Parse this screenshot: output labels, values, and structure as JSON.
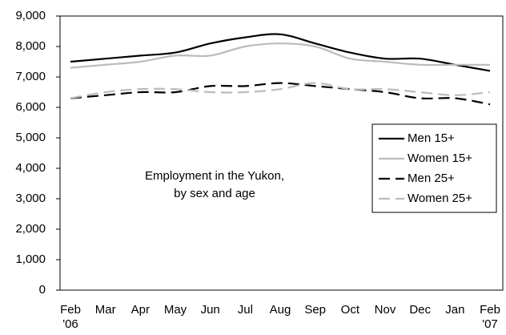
{
  "chart_data": {
    "type": "line",
    "annotation": [
      "Employment in the Yukon,",
      "by sex and age"
    ],
    "categories": [
      "Feb '06",
      "Mar",
      "Apr",
      "May",
      "Jun",
      "Jul",
      "Aug",
      "Sep",
      "Oct",
      "Nov",
      "Dec",
      "Jan",
      "Feb '07"
    ],
    "series": [
      {
        "name": "Men 15+",
        "color": "#000000",
        "style": "solid",
        "values": [
          7500,
          7600,
          7700,
          7800,
          8100,
          8300,
          8400,
          8100,
          7800,
          7600,
          7600,
          7400,
          7200
        ]
      },
      {
        "name": "Women 15+",
        "color": "#bbbbbb",
        "style": "solid",
        "values": [
          7300,
          7400,
          7500,
          7700,
          7700,
          8000,
          8100,
          8000,
          7600,
          7500,
          7400,
          7400,
          7400
        ]
      },
      {
        "name": "Men 25+",
        "color": "#000000",
        "style": "dashed",
        "values": [
          6300,
          6400,
          6500,
          6500,
          6700,
          6700,
          6800,
          6700,
          6600,
          6500,
          6300,
          6300,
          6100
        ]
      },
      {
        "name": "Women 25+",
        "color": "#bbbbbb",
        "style": "dashed",
        "values": [
          6300,
          6500,
          6600,
          6600,
          6500,
          6500,
          6600,
          6800,
          6600,
          6600,
          6500,
          6400,
          6500
        ]
      }
    ],
    "ylim": [
      0,
      9000
    ],
    "yticks": [
      0,
      {
        "value": 1000,
        "label": "1,000"
      },
      {
        "value": 2000,
        "label": "2,000"
      },
      {
        "value": 3000,
        "label": "3,000"
      },
      {
        "value": 4000,
        "label": "4,000"
      },
      {
        "value": 5000,
        "label": "5,000"
      },
      {
        "value": 6000,
        "label": "6,000"
      },
      {
        "value": 7000,
        "label": "7,000"
      },
      {
        "value": 8000,
        "label": "8,000"
      },
      {
        "value": 9000,
        "label": "9,000"
      }
    ],
    "grid": false,
    "legend": "right"
  }
}
